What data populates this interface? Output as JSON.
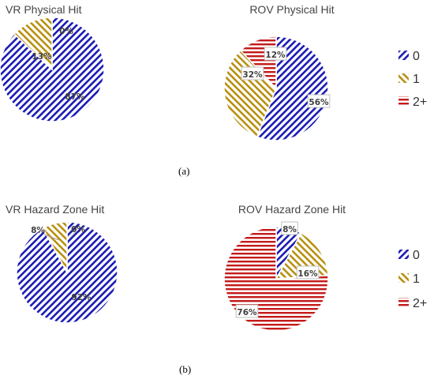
{
  "panel_labels": {
    "a": "(a)",
    "b": "(b)"
  },
  "legend": [
    {
      "label": "0",
      "pattern": "diagonal-blue"
    },
    {
      "label": "1",
      "pattern": "diagonal-gold"
    },
    {
      "label": "2+",
      "pattern": "horizontal-red"
    }
  ],
  "colors": {
    "cat0": "#1a1ab5",
    "cat1": "#b8900f",
    "cat2": "#c41a1a",
    "label_text": "#404040",
    "leader": "#a0a0a0"
  },
  "chart_data": [
    {
      "type": "pie",
      "title": "VR Physical Hit",
      "categories": [
        "0",
        "1",
        "2+"
      ],
      "values": [
        87,
        13,
        0
      ],
      "labels": [
        "87%",
        "13%",
        "0%"
      ],
      "legend": "none"
    },
    {
      "type": "pie",
      "title": "ROV Physical Hit",
      "categories": [
        "0",
        "1",
        "2+"
      ],
      "values": [
        56,
        32,
        12
      ],
      "labels": [
        "56%",
        "32%",
        "12%"
      ],
      "legend": "right"
    },
    {
      "type": "pie",
      "title": "VR Hazard Zone Hit",
      "categories": [
        "0",
        "1",
        "2+"
      ],
      "values": [
        92,
        8,
        0
      ],
      "labels": [
        "92%",
        "8%",
        "0%"
      ],
      "legend": "none"
    },
    {
      "type": "pie",
      "title": "ROV Hazard Zone Hit",
      "categories": [
        "0",
        "1",
        "2+"
      ],
      "values": [
        8,
        16,
        76
      ],
      "labels": [
        "8%",
        "16%",
        "76%"
      ],
      "legend": "right"
    }
  ]
}
